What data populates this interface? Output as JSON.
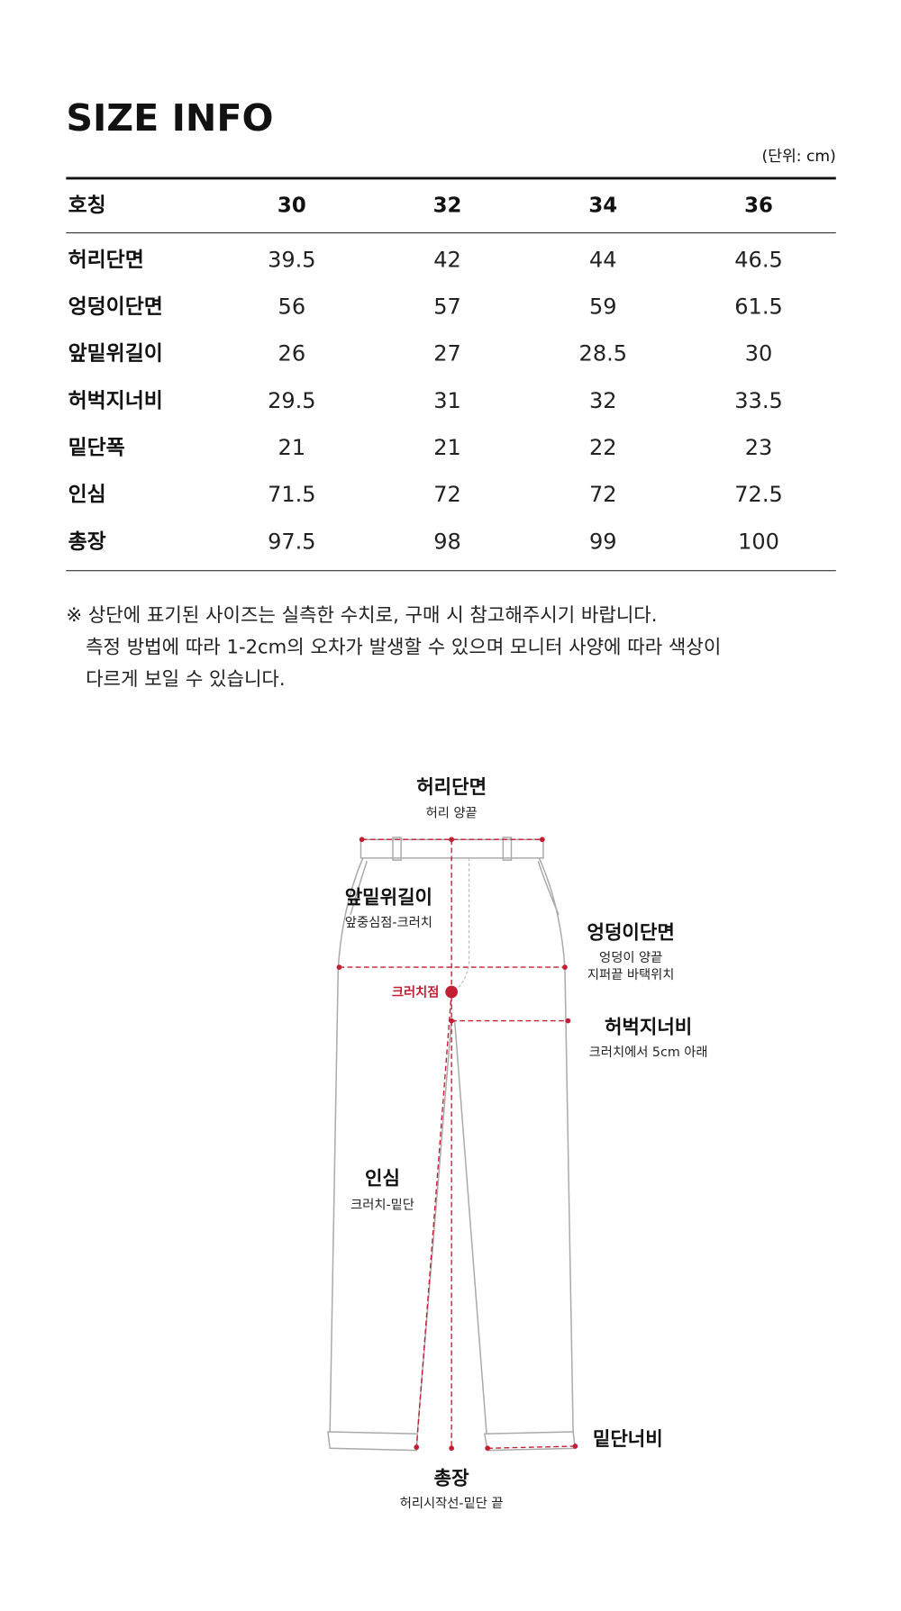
{
  "header": {
    "title": "SIZE INFO",
    "unit": "(단위: cm)"
  },
  "table": {
    "columns": [
      "호칭",
      "30",
      "32",
      "34",
      "36"
    ],
    "rows": [
      [
        "허리단면",
        "39.5",
        "42",
        "44",
        "46.5"
      ],
      [
        "엉덩이단면",
        "56",
        "57",
        "59",
        "61.5"
      ],
      [
        "앞밑위길이",
        "26",
        "27",
        "28.5",
        "30"
      ],
      [
        "허벅지너비",
        "29.5",
        "31",
        "32",
        "33.5"
      ],
      [
        "밑단폭",
        "21",
        "21",
        "22",
        "23"
      ],
      [
        "인심",
        "71.5",
        "72",
        "72",
        "72.5"
      ],
      [
        "총장",
        "97.5",
        "98",
        "99",
        "100"
      ]
    ]
  },
  "note": {
    "lines": [
      "※ 상단에 표기된 사이즈는 실측한 수치로, 구매 시 참고해주시기 바랍니다.",
      "측정 방법에 따라 1-2cm의 오차가 발생할 수 있으며 모니터 사양에 따라 색상이",
      "다르게 보일 수 있습니다."
    ]
  },
  "diagram": {
    "waist": {
      "label": "허리단면",
      "sub": [
        "허리 양끝"
      ]
    },
    "front_rise": {
      "label": "앞밑위길이",
      "sub": [
        "앞중심점-크러치"
      ]
    },
    "hip": {
      "label": "엉덩이단면",
      "sub": [
        "엉덩이 양끝",
        "지퍼끝 바택위치"
      ]
    },
    "crotch": {
      "label": "크러치점"
    },
    "thigh": {
      "label": "허벅지너비",
      "sub": [
        "크러치에서 5cm 아래"
      ]
    },
    "inseam": {
      "label": "인심",
      "sub": [
        "크러치-밑단"
      ]
    },
    "hem": {
      "label": "밑단너비"
    },
    "length": {
      "label": "총장",
      "sub": [
        "허리시작선-밑단 끝"
      ]
    }
  }
}
